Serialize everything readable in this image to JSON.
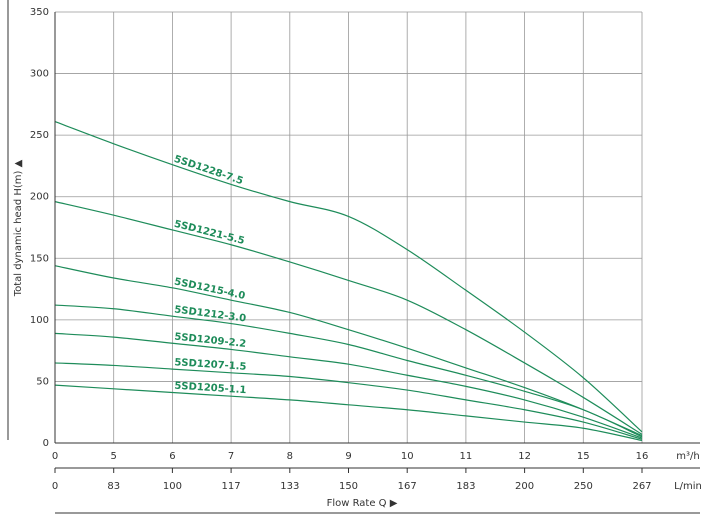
{
  "chart_data": {
    "type": "line",
    "ylabel": "Total dynamic head H(m) ▲",
    "xlabel": "Flow Rate Q ▶",
    "x_unit": "m³/h",
    "x2_unit": "L/min",
    "categories": [
      "0",
      "5",
      "6",
      "7",
      "8",
      "9",
      "10",
      "11",
      "12",
      "15",
      "16"
    ],
    "categories2": [
      "0",
      "83",
      "100",
      "117",
      "133",
      "150",
      "167",
      "183",
      "200",
      "250",
      "267"
    ],
    "ylim": [
      0,
      350
    ],
    "yticks": [
      0,
      50,
      100,
      150,
      200,
      250,
      300,
      350
    ],
    "grid": true,
    "series": [
      {
        "name": "5SD1228-7.5",
        "color": "#1e8c5a",
        "values": [
          261,
          243,
          226,
          210,
          196,
          184,
          157,
          124,
          90,
          53,
          9
        ]
      },
      {
        "name": "5SD1221-5.5",
        "color": "#1e8c5a",
        "values": [
          196,
          185,
          173,
          161,
          147,
          132,
          116,
          92,
          65,
          37,
          7
        ]
      },
      {
        "name": "5SD1215-4.0",
        "color": "#1e8c5a",
        "values": [
          144,
          134,
          126,
          116,
          106,
          92,
          77,
          61,
          45,
          27,
          6
        ]
      },
      {
        "name": "5SD1212-3.0",
        "color": "#1e8c5a",
        "values": [
          112,
          109,
          103,
          97,
          89,
          80,
          67,
          55,
          42,
          27,
          5
        ]
      },
      {
        "name": "5SD1209-2.2",
        "color": "#1e8c5a",
        "values": [
          89,
          86,
          81,
          76,
          70,
          64,
          55,
          46,
          35,
          21,
          4
        ]
      },
      {
        "name": "5SD1207-1.5",
        "color": "#1e8c5a",
        "values": [
          65,
          63,
          60,
          57,
          54,
          49,
          43,
          35,
          27,
          17,
          3
        ]
      },
      {
        "name": "5SD1205-1.1",
        "color": "#1e8c5a",
        "values": [
          47,
          44,
          41,
          38,
          35,
          31,
          27,
          22,
          17,
          12,
          2
        ]
      }
    ]
  }
}
